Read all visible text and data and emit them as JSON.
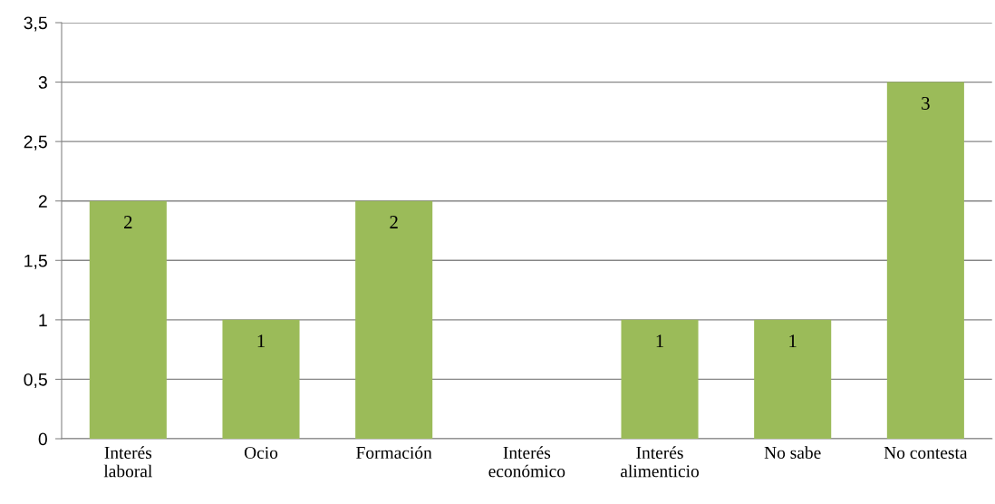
{
  "chart_data": {
    "type": "bar",
    "categories": [
      "Interés\nlaboral",
      "Ocio",
      "Formación",
      "Interés\neconómico",
      "Interés\nalimenticio",
      "No sabe",
      "No contesta"
    ],
    "values": [
      2,
      1,
      2,
      0,
      1,
      1,
      3
    ],
    "value_labels": [
      "2",
      "1",
      "2",
      null,
      "1",
      "1",
      "3"
    ],
    "color": "#9bbb59",
    "ylim": [
      0,
      3.5
    ],
    "yticks": [
      0,
      {
        "value": 0.5,
        "label": "0,5"
      },
      1,
      {
        "value": 1.5,
        "label": "1,5"
      },
      2,
      {
        "value": 2.5,
        "label": "2,5"
      },
      3,
      {
        "value": 3.5,
        "label": "3,5"
      }
    ],
    "grid": "y",
    "legend": false
  }
}
